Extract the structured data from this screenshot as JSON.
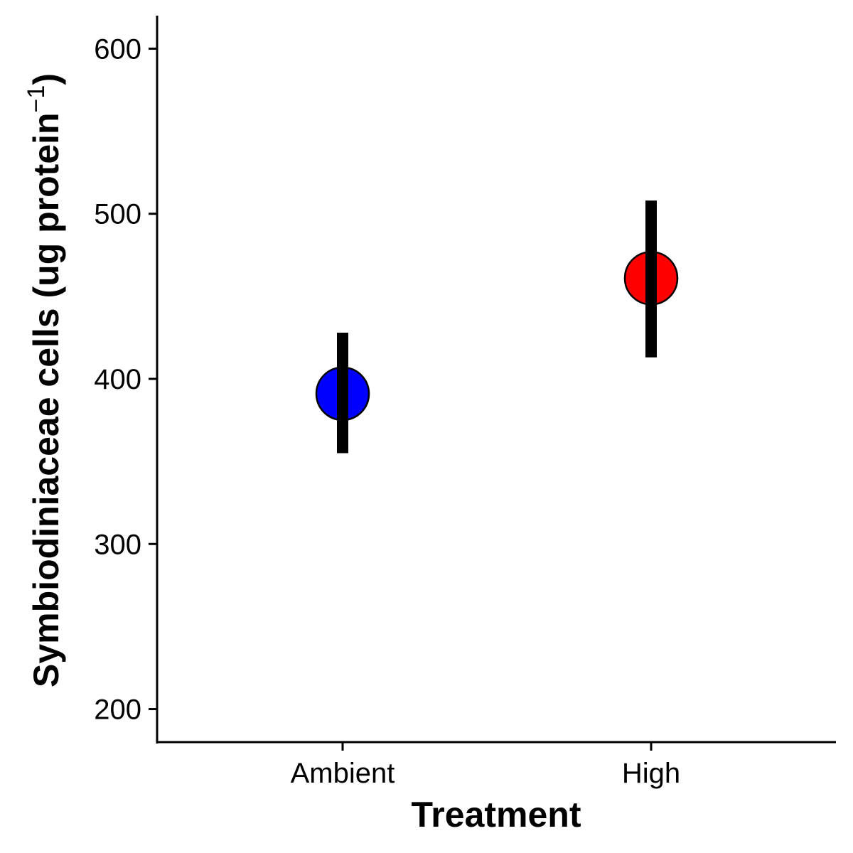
{
  "chart_data": {
    "type": "scatter",
    "xlabel": "Treatment",
    "ylabel_main": "Symbiodiniaceae cells (ug protein",
    "ylabel_sup": "−1",
    "ylabel_close": ")",
    "categories": [
      "Ambient",
      "High"
    ],
    "ylim": [
      180,
      620
    ],
    "yticks": [
      200,
      300,
      400,
      500,
      600
    ],
    "ytick_labels": [
      "200",
      "300",
      "400",
      "500",
      "600"
    ],
    "grid": false,
    "legend": "none",
    "points": [
      {
        "category": "Ambient",
        "mean": 391,
        "lower": 355,
        "upper": 428,
        "color": "#0000ff"
      },
      {
        "category": "High",
        "mean": 461,
        "lower": 413,
        "upper": 508,
        "color": "#ff0000"
      }
    ]
  }
}
